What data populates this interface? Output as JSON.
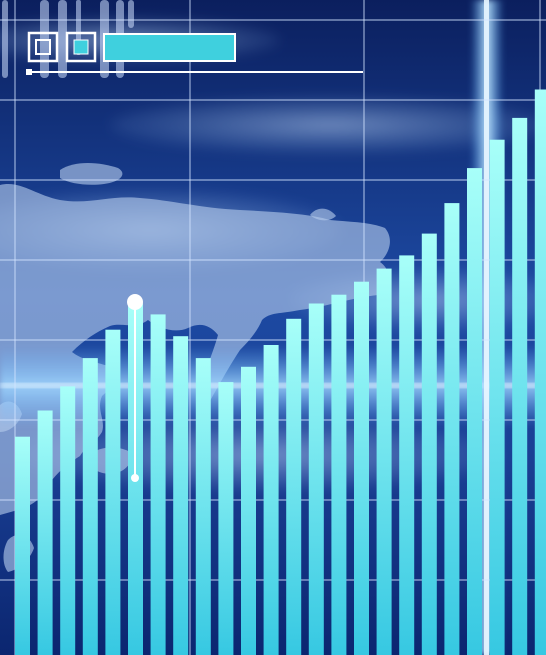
{
  "image": {
    "kind": "decorative-financial-illustration",
    "has_text": false
  },
  "palette": {
    "deep_blue": "#0a1f5c",
    "mid_blue": "#1e4fa8",
    "cloud": "#a8c4e8",
    "bar_top": "#9ffcf8",
    "bar_bottom": "#4fd6ea",
    "grid": "#cfe2ff",
    "glow": "#8fd0ff",
    "indicator_fill": "#3fd0de"
  },
  "chart_data": {
    "type": "bar",
    "values": [
      100,
      112,
      123,
      136,
      149,
      161,
      156,
      146,
      136,
      125,
      132,
      142,
      154,
      161,
      165,
      171,
      177,
      183,
      193,
      207,
      223,
      236,
      246,
      259
    ],
    "ylim": [
      0,
      300
    ],
    "grid": true
  },
  "decor": {
    "map_continent": true,
    "vertical_light_beam": true,
    "horizontal_light_band": true,
    "marker_pin": true
  }
}
